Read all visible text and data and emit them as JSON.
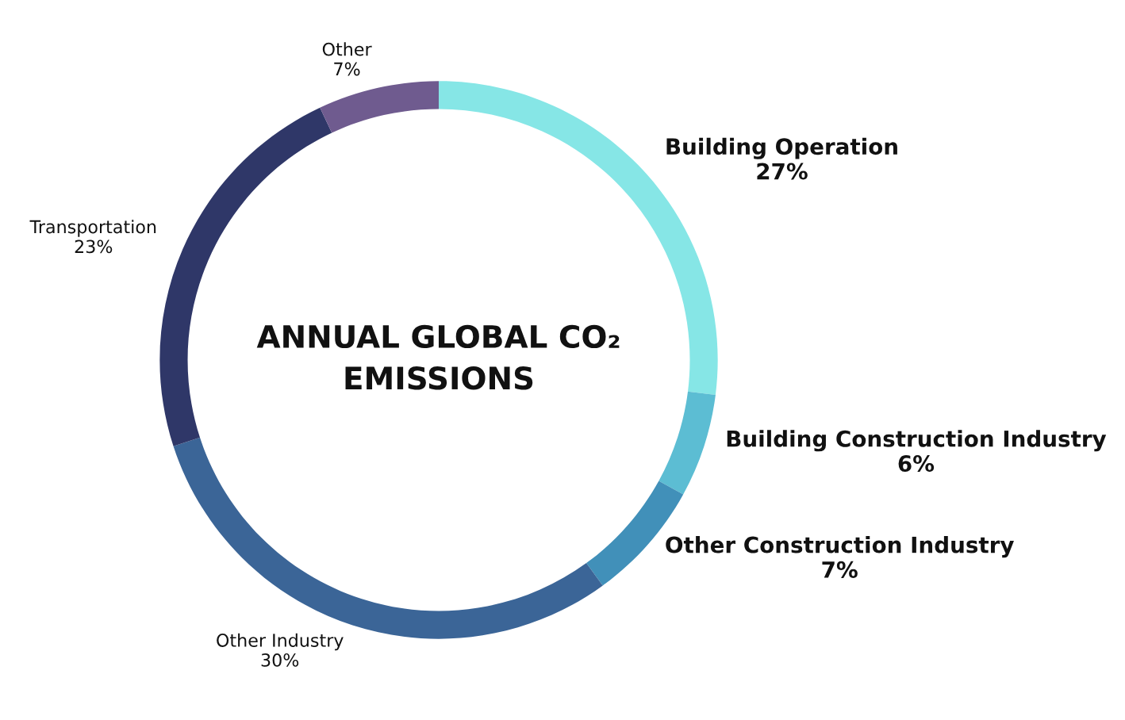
{
  "chart_data": {
    "type": "donut",
    "title": "ANNUAL GLOBAL CO₂\nEMISSIONS",
    "categories": [
      "Building Operation",
      "Building Construction Industry",
      "Other Construction Industry",
      "Other Industry",
      "Transportation",
      "Other"
    ],
    "values": [
      27,
      6,
      7,
      30,
      23,
      7
    ],
    "value_labels": [
      "27%",
      "6%",
      "7%",
      "30%",
      "23%",
      "7%"
    ],
    "colors": [
      "#86e6e6",
      "#5cbdd3",
      "#4190b9",
      "#3b6597",
      "#2f3768",
      "#6f5b8f"
    ],
    "legend": false
  }
}
